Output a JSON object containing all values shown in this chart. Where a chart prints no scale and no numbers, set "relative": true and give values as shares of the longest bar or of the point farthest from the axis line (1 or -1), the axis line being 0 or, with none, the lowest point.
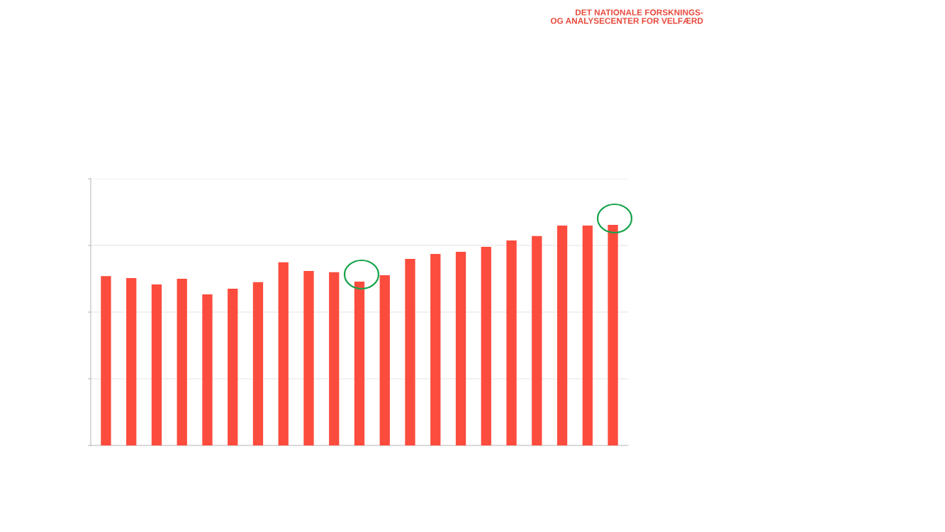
{
  "chart_data": {
    "type": "bar",
    "relative": true,
    "grid": "y",
    "color": "#fc4c3e",
    "categories": [
      null,
      null,
      null,
      null,
      null,
      null,
      null,
      null,
      null,
      null,
      null,
      null,
      null,
      null,
      null,
      null,
      null,
      null,
      null,
      null,
      null
    ],
    "values": [
      0.768,
      0.759,
      0.73,
      0.756,
      0.685,
      0.711,
      0.74,
      0.83,
      0.791,
      0.785,
      0.743,
      0.772,
      0.846,
      0.868,
      0.878,
      0.9,
      0.929,
      0.949,
      0.997,
      0.997,
      1
    ],
    "annotations": [
      "DET NATIONALE FORSKNINGS-\nOG ANALYSECENTER FOR VELFÆRD"
    ]
  }
}
